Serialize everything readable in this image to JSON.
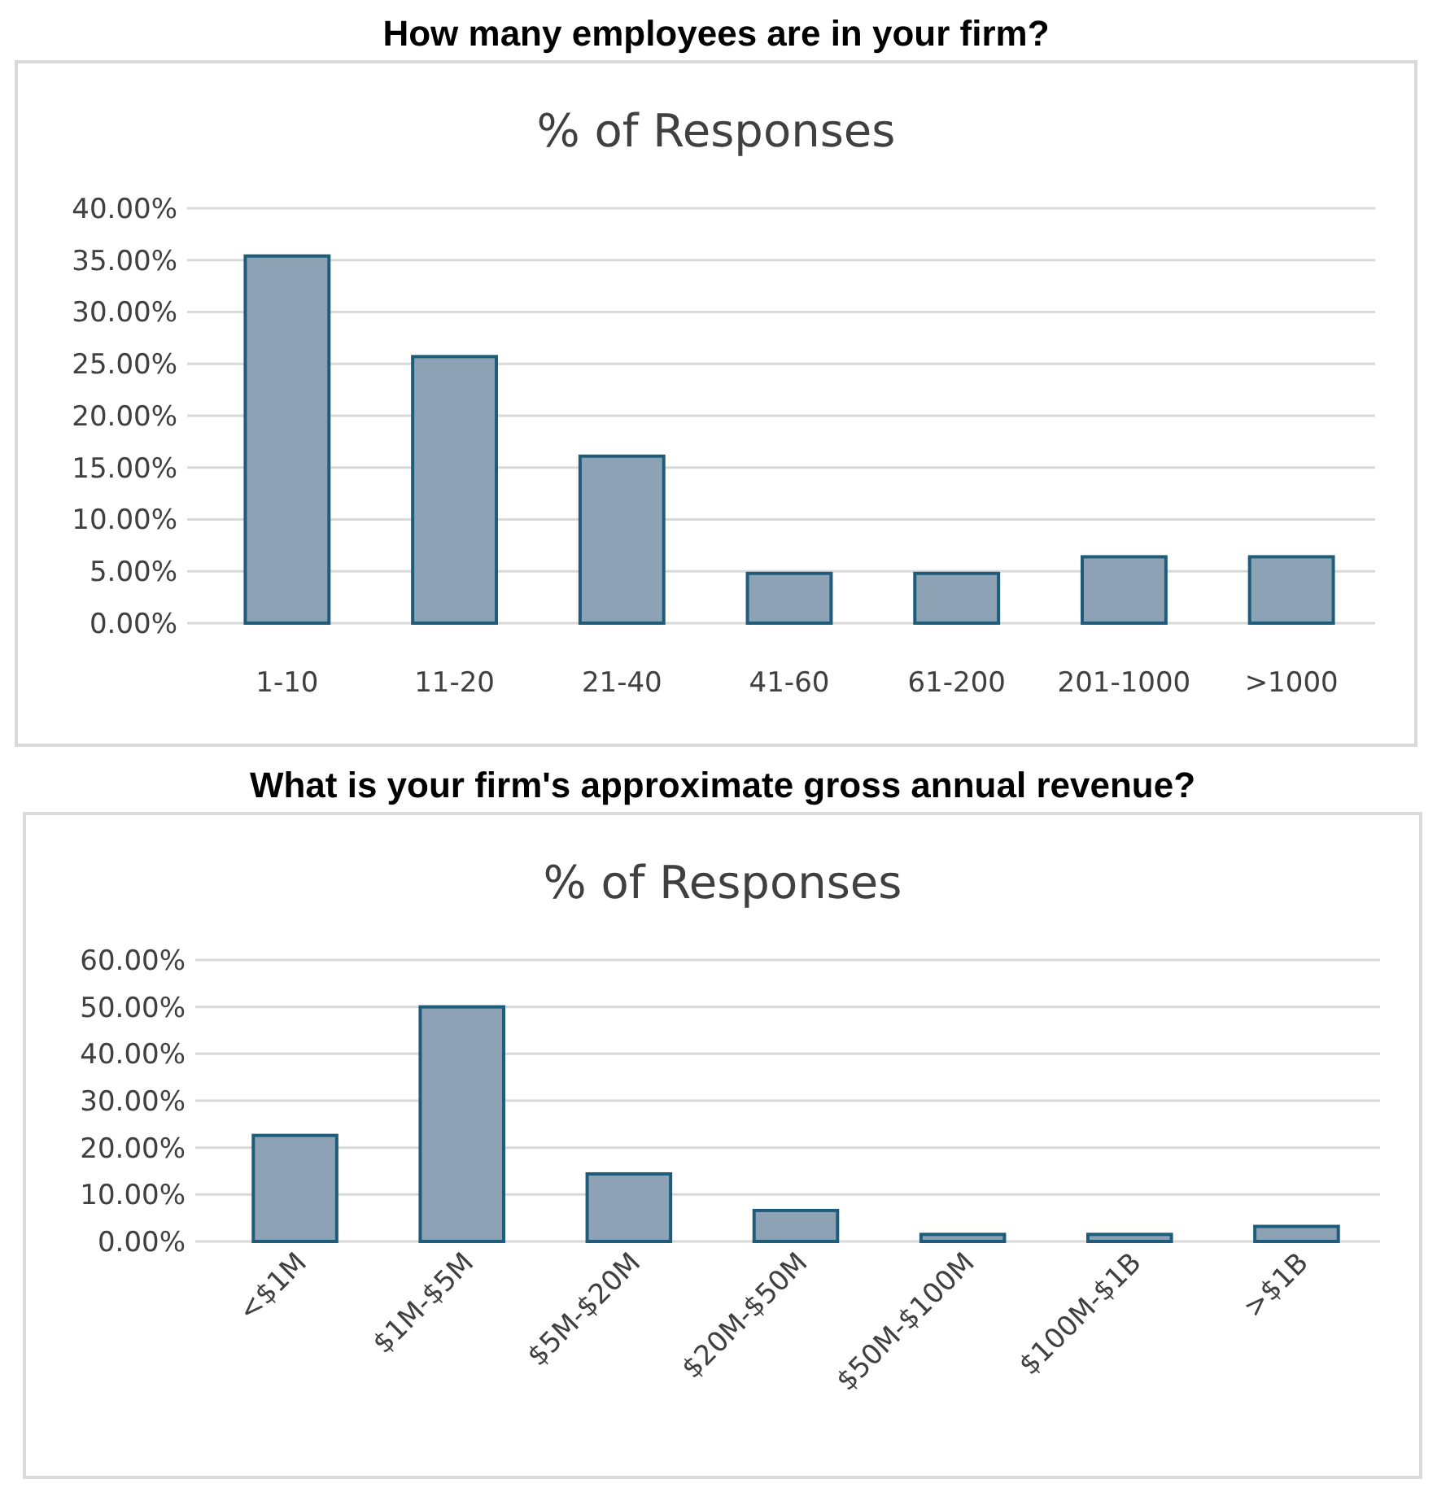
{
  "chart_data": [
    {
      "type": "bar",
      "title": "How many employees are in your firm?",
      "subtitle": "% of Responses",
      "categories": [
        "1-10",
        "11-20",
        "21-40",
        "41-60",
        "61-200",
        "201-1000",
        ">1000"
      ],
      "values": [
        35.4,
        25.7,
        16.1,
        4.8,
        4.8,
        6.4,
        6.4
      ],
      "color": "#8da3b5",
      "ylim": [
        0,
        40
      ],
      "yticks": [
        {
          "value": 0,
          "label": "0.00%"
        },
        {
          "value": 5,
          "label": "5.00%"
        },
        {
          "value": 10,
          "label": "10.00%"
        },
        {
          "value": 15,
          "label": "15.00%"
        },
        {
          "value": 20,
          "label": "20.00%"
        },
        {
          "value": 25,
          "label": "25.00%"
        },
        {
          "value": 30,
          "label": "30.00%"
        },
        {
          "value": 35,
          "label": "35.00%"
        },
        {
          "value": 40,
          "label": "40.00%"
        }
      ],
      "grid": "y"
    },
    {
      "type": "bar",
      "title": "What is your firm's approximate gross annual revenue?",
      "subtitle": "% of Responses",
      "categories": [
        "<$1M",
        "$1M-$5M",
        "$5M-$20M",
        "$20M-$50M",
        "$50M-$100M",
        "$100M-$1B",
        ">$1B"
      ],
      "values": [
        22.6,
        50,
        14.4,
        6.6,
        1.5,
        1.5,
        3.2
      ],
      "color": "#8da3b5",
      "ylim": [
        0,
        60
      ],
      "yticks": [
        {
          "value": 0,
          "label": "0.00%"
        },
        {
          "value": 10,
          "label": "10.00%"
        },
        {
          "value": 20,
          "label": "20.00%"
        },
        {
          "value": 30,
          "label": "30.00%"
        },
        {
          "value": 40,
          "label": "40.00%"
        },
        {
          "value": 50,
          "label": "50.00%"
        },
        {
          "value": 60,
          "label": "60.00%"
        }
      ],
      "grid": "y"
    }
  ]
}
